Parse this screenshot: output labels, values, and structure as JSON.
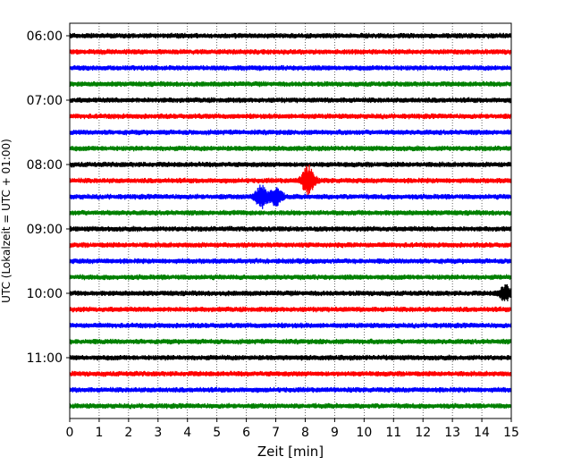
{
  "chart_data": {
    "type": "line",
    "title": "",
    "xlabel": "Zeit  [min]",
    "ylabel": "UTC (Lokalzeit = UTC + 01:00)",
    "xlim": [
      0,
      15
    ],
    "x_ticks": [
      "0",
      "1",
      "2",
      "3",
      "4",
      "5",
      "6",
      "7",
      "8",
      "9",
      "10",
      "11",
      "12",
      "13",
      "14",
      "15"
    ],
    "y_ticks": [
      "06:00",
      "07:00",
      "08:00",
      "09:00",
      "10:00",
      "11:00"
    ],
    "rows_per_hour": 4,
    "grid": "vertical dotted",
    "series": [
      {
        "start": "06:00",
        "color": "#000000"
      },
      {
        "start": "06:15",
        "color": "#ff0000"
      },
      {
        "start": "06:30",
        "color": "#0000ff"
      },
      {
        "start": "06:45",
        "color": "#008000"
      },
      {
        "start": "07:00",
        "color": "#000000"
      },
      {
        "start": "07:15",
        "color": "#ff0000"
      },
      {
        "start": "07:30",
        "color": "#0000ff"
      },
      {
        "start": "07:45",
        "color": "#008000"
      },
      {
        "start": "08:00",
        "color": "#000000"
      },
      {
        "start": "08:15",
        "color": "#ff0000",
        "events": [
          {
            "t": 8.1,
            "amp": 1.6
          }
        ]
      },
      {
        "start": "08:30",
        "color": "#0000ff",
        "events": [
          {
            "t": 6.5,
            "amp": 1.2
          },
          {
            "t": 7.0,
            "amp": 1.1
          }
        ]
      },
      {
        "start": "08:45",
        "color": "#008000"
      },
      {
        "start": "09:00",
        "color": "#000000"
      },
      {
        "start": "09:15",
        "color": "#ff0000"
      },
      {
        "start": "09:30",
        "color": "#0000ff"
      },
      {
        "start": "09:45",
        "color": "#008000"
      },
      {
        "start": "10:00",
        "color": "#000000",
        "events": [
          {
            "t": 14.8,
            "amp": 0.8
          }
        ]
      },
      {
        "start": "10:15",
        "color": "#ff0000"
      },
      {
        "start": "10:30",
        "color": "#0000ff"
      },
      {
        "start": "10:45",
        "color": "#008000"
      },
      {
        "start": "11:00",
        "color": "#000000"
      },
      {
        "start": "11:15",
        "color": "#ff0000"
      },
      {
        "start": "11:30",
        "color": "#0000ff"
      },
      {
        "start": "11:45",
        "color": "#008000"
      }
    ]
  }
}
